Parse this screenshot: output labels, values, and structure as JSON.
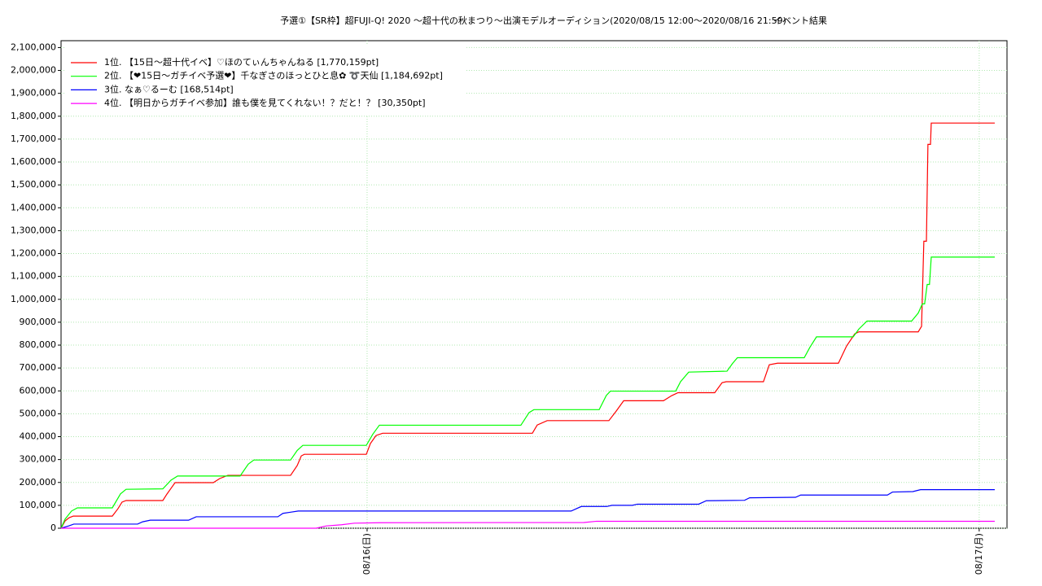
{
  "chart_data": {
    "type": "line",
    "title": "予選①【SR枠】超FUJI-Q! 2020 〜超十代の秋まつり〜出演モデルオーディション(2020/08/15 12:00〜2020/08/16 21:59)",
    "subtitle": "イベント結果",
    "xlim": [
      0,
      37.09
    ],
    "xticks": [
      {
        "value": 12,
        "label": "08/16(日)"
      },
      {
        "value": 36,
        "label": "08/17(月)"
      }
    ],
    "ylim": [
      0,
      2130000
    ],
    "yticks": [
      {
        "value": 0,
        "label": "0"
      },
      {
        "value": 100000,
        "label": "100,000"
      },
      {
        "value": 200000,
        "label": "200,000"
      },
      {
        "value": 300000,
        "label": "300,000"
      },
      {
        "value": 400000,
        "label": "400,000"
      },
      {
        "value": 500000,
        "label": "500,000"
      },
      {
        "value": 600000,
        "label": "600,000"
      },
      {
        "value": 700000,
        "label": "700,000"
      },
      {
        "value": 800000,
        "label": "800,000"
      },
      {
        "value": 900000,
        "label": "900,000"
      },
      {
        "value": 1000000,
        "label": "1,000,000"
      },
      {
        "value": 1100000,
        "label": "1,100,000"
      },
      {
        "value": 1200000,
        "label": "1,200,000"
      },
      {
        "value": 1300000,
        "label": "1,300,000"
      },
      {
        "value": 1400000,
        "label": "1,400,000"
      },
      {
        "value": 1500000,
        "label": "1,500,000"
      },
      {
        "value": 1600000,
        "label": "1,600,000"
      },
      {
        "value": 1700000,
        "label": "1,700,000"
      },
      {
        "value": 1800000,
        "label": "1,800,000"
      },
      {
        "value": 1900000,
        "label": "1,900,000"
      },
      {
        "value": 2000000,
        "label": "2,000,000"
      },
      {
        "value": 2100000,
        "label": "2,100,000"
      }
    ],
    "grid": true,
    "legend": "upper-left",
    "series": [
      {
        "name": "1位. 【15日〜超十代イベ】♡ほのてぃんちゃんねる [1,770,159pt]",
        "color": "#ff0000",
        "x": [
          0,
          0.16,
          0.32,
          0.48,
          2.01,
          2.23,
          2.39,
          2.55,
          3.99,
          4.15,
          4.31,
          4.47,
          5.97,
          6.22,
          6.54,
          9.0,
          9.26,
          9.42,
          9.54,
          11.97,
          12.13,
          12.35,
          12.61,
          18.48,
          18.67,
          19.06,
          21.48,
          21.77,
          22.06,
          23.62,
          23.94,
          24.19,
          25.63,
          25.92,
          26.08,
          27.54,
          27.77,
          28.09,
          30.48,
          30.8,
          31.12,
          31.28,
          33.61,
          33.74,
          33.83,
          33.93,
          33.99,
          34.09,
          34.12,
          36.61
        ],
        "values": [
          0,
          32000,
          46000,
          53000,
          53000,
          85000,
          114000,
          121000,
          121000,
          149000,
          174000,
          199000,
          199000,
          217000,
          231000,
          231000,
          274000,
          316000,
          323000,
          323000,
          370000,
          405000,
          415000,
          415000,
          451000,
          470000,
          470000,
          512000,
          557000,
          557000,
          579000,
          592000,
          592000,
          636000,
          640000,
          640000,
          714000,
          721000,
          721000,
          796000,
          849000,
          858000,
          858000,
          882000,
          1254000,
          1254000,
          1677000,
          1677000,
          1770159,
          1770159
        ]
      },
      {
        "name": "2位. 【❤15日〜ガチイベ予選❤】千なぎさのほっとひと息✿ ➰天仙 [1,184,692pt]",
        "color": "#00ff00",
        "x": [
          0,
          0.16,
          0.41,
          0.64,
          2.01,
          2.33,
          2.55,
          3.99,
          4.31,
          4.57,
          7.02,
          7.34,
          7.56,
          9.0,
          9.26,
          9.48,
          11.97,
          12.22,
          12.48,
          18.03,
          18.35,
          18.54,
          21.1,
          21.38,
          21.54,
          24.1,
          24.29,
          24.61,
          26.11,
          26.33,
          26.52,
          29.14,
          29.36,
          29.62,
          31.06,
          31.28,
          31.6,
          33.35,
          33.61,
          33.77,
          33.86,
          33.96,
          34.05,
          34.12,
          36.61
        ],
        "values": [
          0,
          40000,
          75000,
          89000,
          89000,
          150000,
          170000,
          172000,
          210000,
          228000,
          228000,
          280000,
          298000,
          298000,
          340000,
          362000,
          362000,
          410000,
          450000,
          450000,
          505000,
          518000,
          518000,
          580000,
          599000,
          599000,
          640000,
          682000,
          686000,
          720000,
          745000,
          745000,
          790000,
          836000,
          836000,
          870000,
          905000,
          905000,
          940000,
          980000,
          980000,
          1065000,
          1065000,
          1184692,
          1184692
        ]
      },
      {
        "name": "3位. なぁ♡るーむ [168,514pt]",
        "color": "#0000ff",
        "x": [
          0,
          0.3,
          0.5,
          3.0,
          3.2,
          3.5,
          5.0,
          5.3,
          8.5,
          8.7,
          9.0,
          9.3,
          20.0,
          20.4,
          21.4,
          21.6,
          22.4,
          22.6,
          25.0,
          25.3,
          26.8,
          27.0,
          28.8,
          29.0,
          32.4,
          32.6,
          33.4,
          33.7,
          36.61
        ],
        "values": [
          0,
          10000,
          18000,
          18000,
          28000,
          35000,
          35000,
          50000,
          50000,
          65000,
          70000,
          75000,
          75000,
          95000,
          95000,
          100000,
          100000,
          105000,
          105000,
          120000,
          122000,
          133000,
          135000,
          145000,
          145000,
          158000,
          160000,
          168514,
          168514
        ]
      },
      {
        "name": "4位. 【明日からガチイベ参加】誰も僕を見てくれない！？だと！？ [30,350pt]",
        "color": "#ff00ff",
        "x": [
          0,
          10.0,
          10.4,
          11.0,
          11.5,
          12.5,
          20.5,
          21.0,
          36.61
        ],
        "values": [
          0,
          0,
          10000,
          15000,
          22000,
          24000,
          25000,
          30350,
          30350
        ]
      }
    ]
  }
}
